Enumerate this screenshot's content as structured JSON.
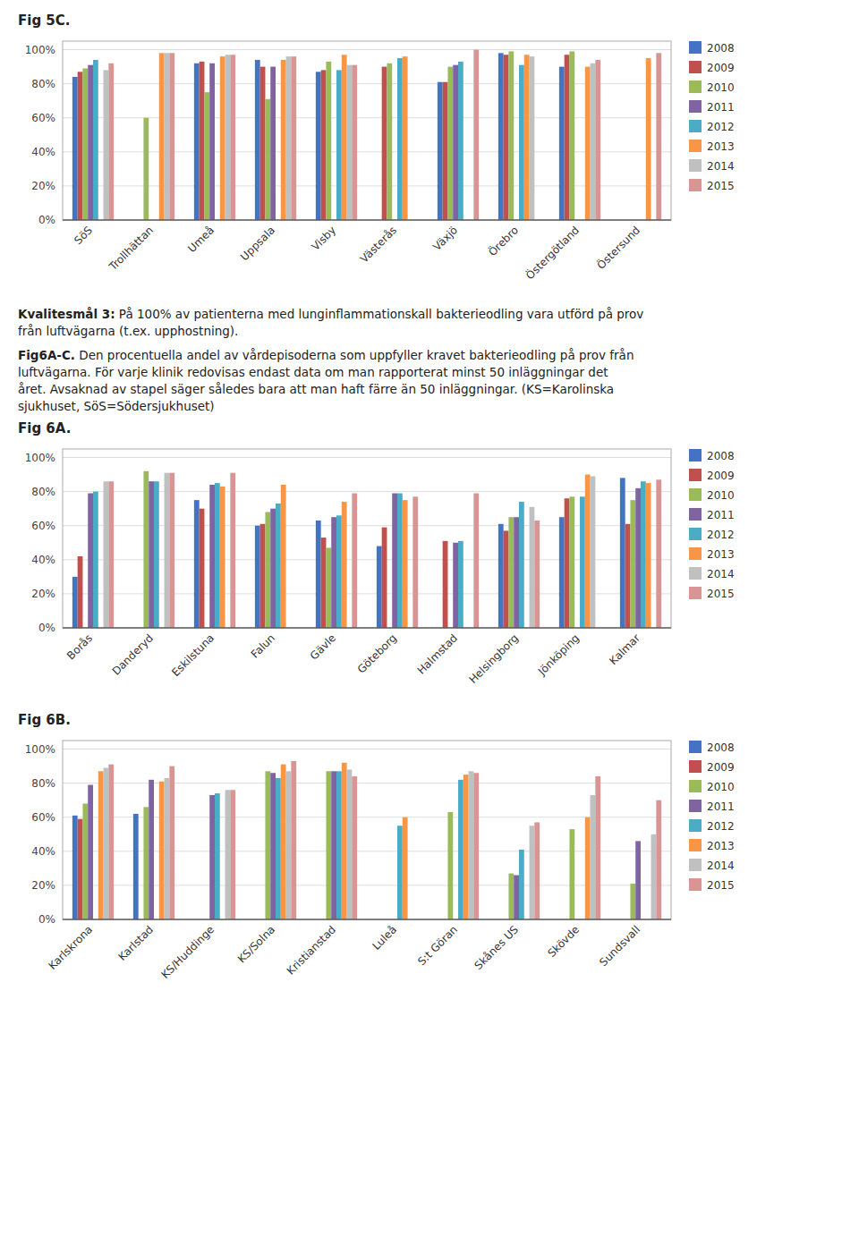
{
  "chart_data": [
    {
      "type": "bar",
      "title": "Fig 5C.",
      "categories": [
        "SöS",
        "Trollhättan",
        "Umeå",
        "Uppsala",
        "Visby",
        "Västerås",
        "Växjö",
        "Örebro",
        "Östergötland",
        "Östersund"
      ],
      "series": [
        {
          "name": "2008",
          "color": "#4472C4",
          "values": [
            0.84,
            null,
            0.92,
            0.94,
            0.87,
            null,
            0.81,
            0.98,
            0.9,
            null
          ]
        },
        {
          "name": "2009",
          "color": "#C0504D",
          "values": [
            0.87,
            null,
            0.93,
            0.9,
            0.88,
            0.9,
            0.81,
            0.97,
            0.97,
            null
          ]
        },
        {
          "name": "2010",
          "color": "#9BBB59",
          "values": [
            0.89,
            0.6,
            0.75,
            0.71,
            0.93,
            0.92,
            0.9,
            0.99,
            0.99,
            null
          ]
        },
        {
          "name": "2011",
          "color": "#8064A2",
          "values": [
            0.91,
            null,
            0.92,
            0.9,
            null,
            null,
            0.91,
            null,
            null,
            null
          ]
        },
        {
          "name": "2012",
          "color": "#4BACC6",
          "values": [
            0.94,
            null,
            null,
            null,
            0.88,
            0.95,
            0.93,
            0.91,
            null,
            null
          ]
        },
        {
          "name": "2013",
          "color": "#F79646",
          "values": [
            null,
            0.98,
            0.96,
            0.94,
            0.97,
            0.96,
            null,
            0.97,
            0.9,
            0.95
          ]
        },
        {
          "name": "2014",
          "color": "#C0C0C0",
          "values": [
            0.88,
            0.98,
            0.97,
            0.96,
            0.91,
            null,
            null,
            0.96,
            0.92,
            null
          ]
        },
        {
          "name": "2015",
          "color": "#D99594",
          "values": [
            0.92,
            0.98,
            0.97,
            0.96,
            0.91,
            null,
            1.0,
            null,
            0.94,
            0.98
          ]
        }
      ],
      "ylim": [
        0,
        1.05
      ],
      "yticks": [
        {
          "value": 0,
          "label": "0%"
        },
        {
          "value": 0.2,
          "label": "20%"
        },
        {
          "value": 0.4,
          "label": "40%"
        },
        {
          "value": 0.6,
          "label": "60%"
        },
        {
          "value": 0.8,
          "label": "80%"
        },
        {
          "value": 1.0,
          "label": "100%"
        }
      ],
      "grid": true,
      "legend": "right"
    },
    {
      "type": "bar",
      "title": "Fig 6A.",
      "annotations": [
        "Kvalitesmål 3:",
        " På 100% av patienterna med lunginflammationskall bakterieodling vara utförd på prov\nfrån luftvägarna (t.ex. upphostning).",
        "Fig6A-C.",
        " Den procentuella andel av vårdepisoderna som uppfyller kravet bakterieodling på prov från\nluftvägarna. För varje klinik redovisas endast data om man rapporterat minst 50 inläggningar det\nåret. Avsaknad av stapel säger således bara att man haft färre än 50 inläggningar. (KS=Karolinska\nsjukhuset, SöS=Södersjukhuset)"
      ],
      "categories": [
        "Borås",
        "Danderyd",
        "Eskilstuna",
        "Falun",
        "Gävle",
        "Göteborg",
        "Halmstad",
        "Helsingborg",
        "Jönköping",
        "Kalmar"
      ],
      "series": [
        {
          "name": "2008",
          "color": "#4472C4",
          "values": [
            0.3,
            null,
            0.75,
            0.6,
            0.63,
            0.48,
            null,
            0.61,
            0.65,
            0.88
          ]
        },
        {
          "name": "2009",
          "color": "#C0504D",
          "values": [
            0.42,
            null,
            0.7,
            0.61,
            0.53,
            0.59,
            0.51,
            0.57,
            0.76,
            0.61
          ]
        },
        {
          "name": "2010",
          "color": "#9BBB59",
          "values": [
            null,
            0.92,
            null,
            0.68,
            0.47,
            null,
            null,
            0.65,
            0.77,
            0.75
          ]
        },
        {
          "name": "2011",
          "color": "#8064A2",
          "values": [
            0.79,
            0.86,
            0.84,
            0.7,
            0.65,
            0.79,
            0.5,
            0.65,
            null,
            0.82
          ]
        },
        {
          "name": "2012",
          "color": "#4BACC6",
          "values": [
            0.8,
            0.86,
            0.85,
            0.73,
            0.66,
            0.79,
            0.51,
            0.74,
            0.77,
            0.86
          ]
        },
        {
          "name": "2013",
          "color": "#F79646",
          "values": [
            null,
            null,
            0.83,
            0.84,
            0.74,
            0.75,
            null,
            null,
            0.9,
            0.85
          ]
        },
        {
          "name": "2014",
          "color": "#C0C0C0",
          "values": [
            0.86,
            0.91,
            null,
            null,
            null,
            null,
            null,
            0.71,
            0.89,
            null
          ]
        },
        {
          "name": "2015",
          "color": "#D99594",
          "values": [
            0.86,
            0.91,
            0.91,
            null,
            0.79,
            0.77,
            0.79,
            0.63,
            null,
            0.87
          ]
        }
      ],
      "ylim": [
        0,
        1.05
      ],
      "yticks": [
        {
          "value": 0,
          "label": "0%"
        },
        {
          "value": 0.2,
          "label": "20%"
        },
        {
          "value": 0.4,
          "label": "40%"
        },
        {
          "value": 0.6,
          "label": "60%"
        },
        {
          "value": 0.8,
          "label": "80%"
        },
        {
          "value": 1.0,
          "label": "100%"
        }
      ],
      "grid": true,
      "legend": "right"
    },
    {
      "type": "bar",
      "title": "Fig 6B.",
      "categories": [
        "Karlskrona",
        "Karlstad",
        "KS/Huddinge",
        "KS/Solna",
        "Kristianstad",
        "Luleå",
        "S:t Göran",
        "Skånes US",
        "Skövde",
        "Sundsvall"
      ],
      "series": [
        {
          "name": "2008",
          "color": "#4472C4",
          "values": [
            0.61,
            0.62,
            null,
            null,
            null,
            null,
            null,
            null,
            null,
            null
          ]
        },
        {
          "name": "2009",
          "color": "#C0504D",
          "values": [
            0.59,
            null,
            null,
            null,
            null,
            null,
            null,
            null,
            null,
            null
          ]
        },
        {
          "name": "2010",
          "color": "#9BBB59",
          "values": [
            0.68,
            0.66,
            null,
            0.87,
            0.87,
            null,
            0.63,
            0.27,
            0.53,
            0.21
          ]
        },
        {
          "name": "2011",
          "color": "#8064A2",
          "values": [
            0.79,
            0.82,
            0.73,
            0.86,
            0.87,
            null,
            null,
            0.26,
            null,
            0.46
          ]
        },
        {
          "name": "2012",
          "color": "#4BACC6",
          "values": [
            null,
            null,
            0.74,
            0.83,
            0.87,
            0.55,
            0.82,
            0.41,
            null,
            null
          ]
        },
        {
          "name": "2013",
          "color": "#F79646",
          "values": [
            0.87,
            0.81,
            null,
            0.91,
            0.92,
            0.6,
            0.85,
            null,
            0.6,
            null
          ]
        },
        {
          "name": "2014",
          "color": "#C0C0C0",
          "values": [
            0.89,
            0.83,
            0.76,
            0.87,
            0.88,
            null,
            0.87,
            0.55,
            0.73,
            0.5
          ]
        },
        {
          "name": "2015",
          "color": "#D99594",
          "values": [
            0.91,
            0.9,
            0.76,
            0.93,
            0.84,
            null,
            0.86,
            0.57,
            0.84,
            0.7
          ]
        }
      ],
      "ylim": [
        0,
        1.05
      ],
      "yticks": [
        {
          "value": 0,
          "label": "0%"
        },
        {
          "value": 0.2,
          "label": "20%"
        },
        {
          "value": 0.4,
          "label": "40%"
        },
        {
          "value": 0.6,
          "label": "60%"
        },
        {
          "value": 0.8,
          "label": "80%"
        },
        {
          "value": 1.0,
          "label": "100%"
        }
      ],
      "grid": true,
      "legend": "right"
    }
  ]
}
